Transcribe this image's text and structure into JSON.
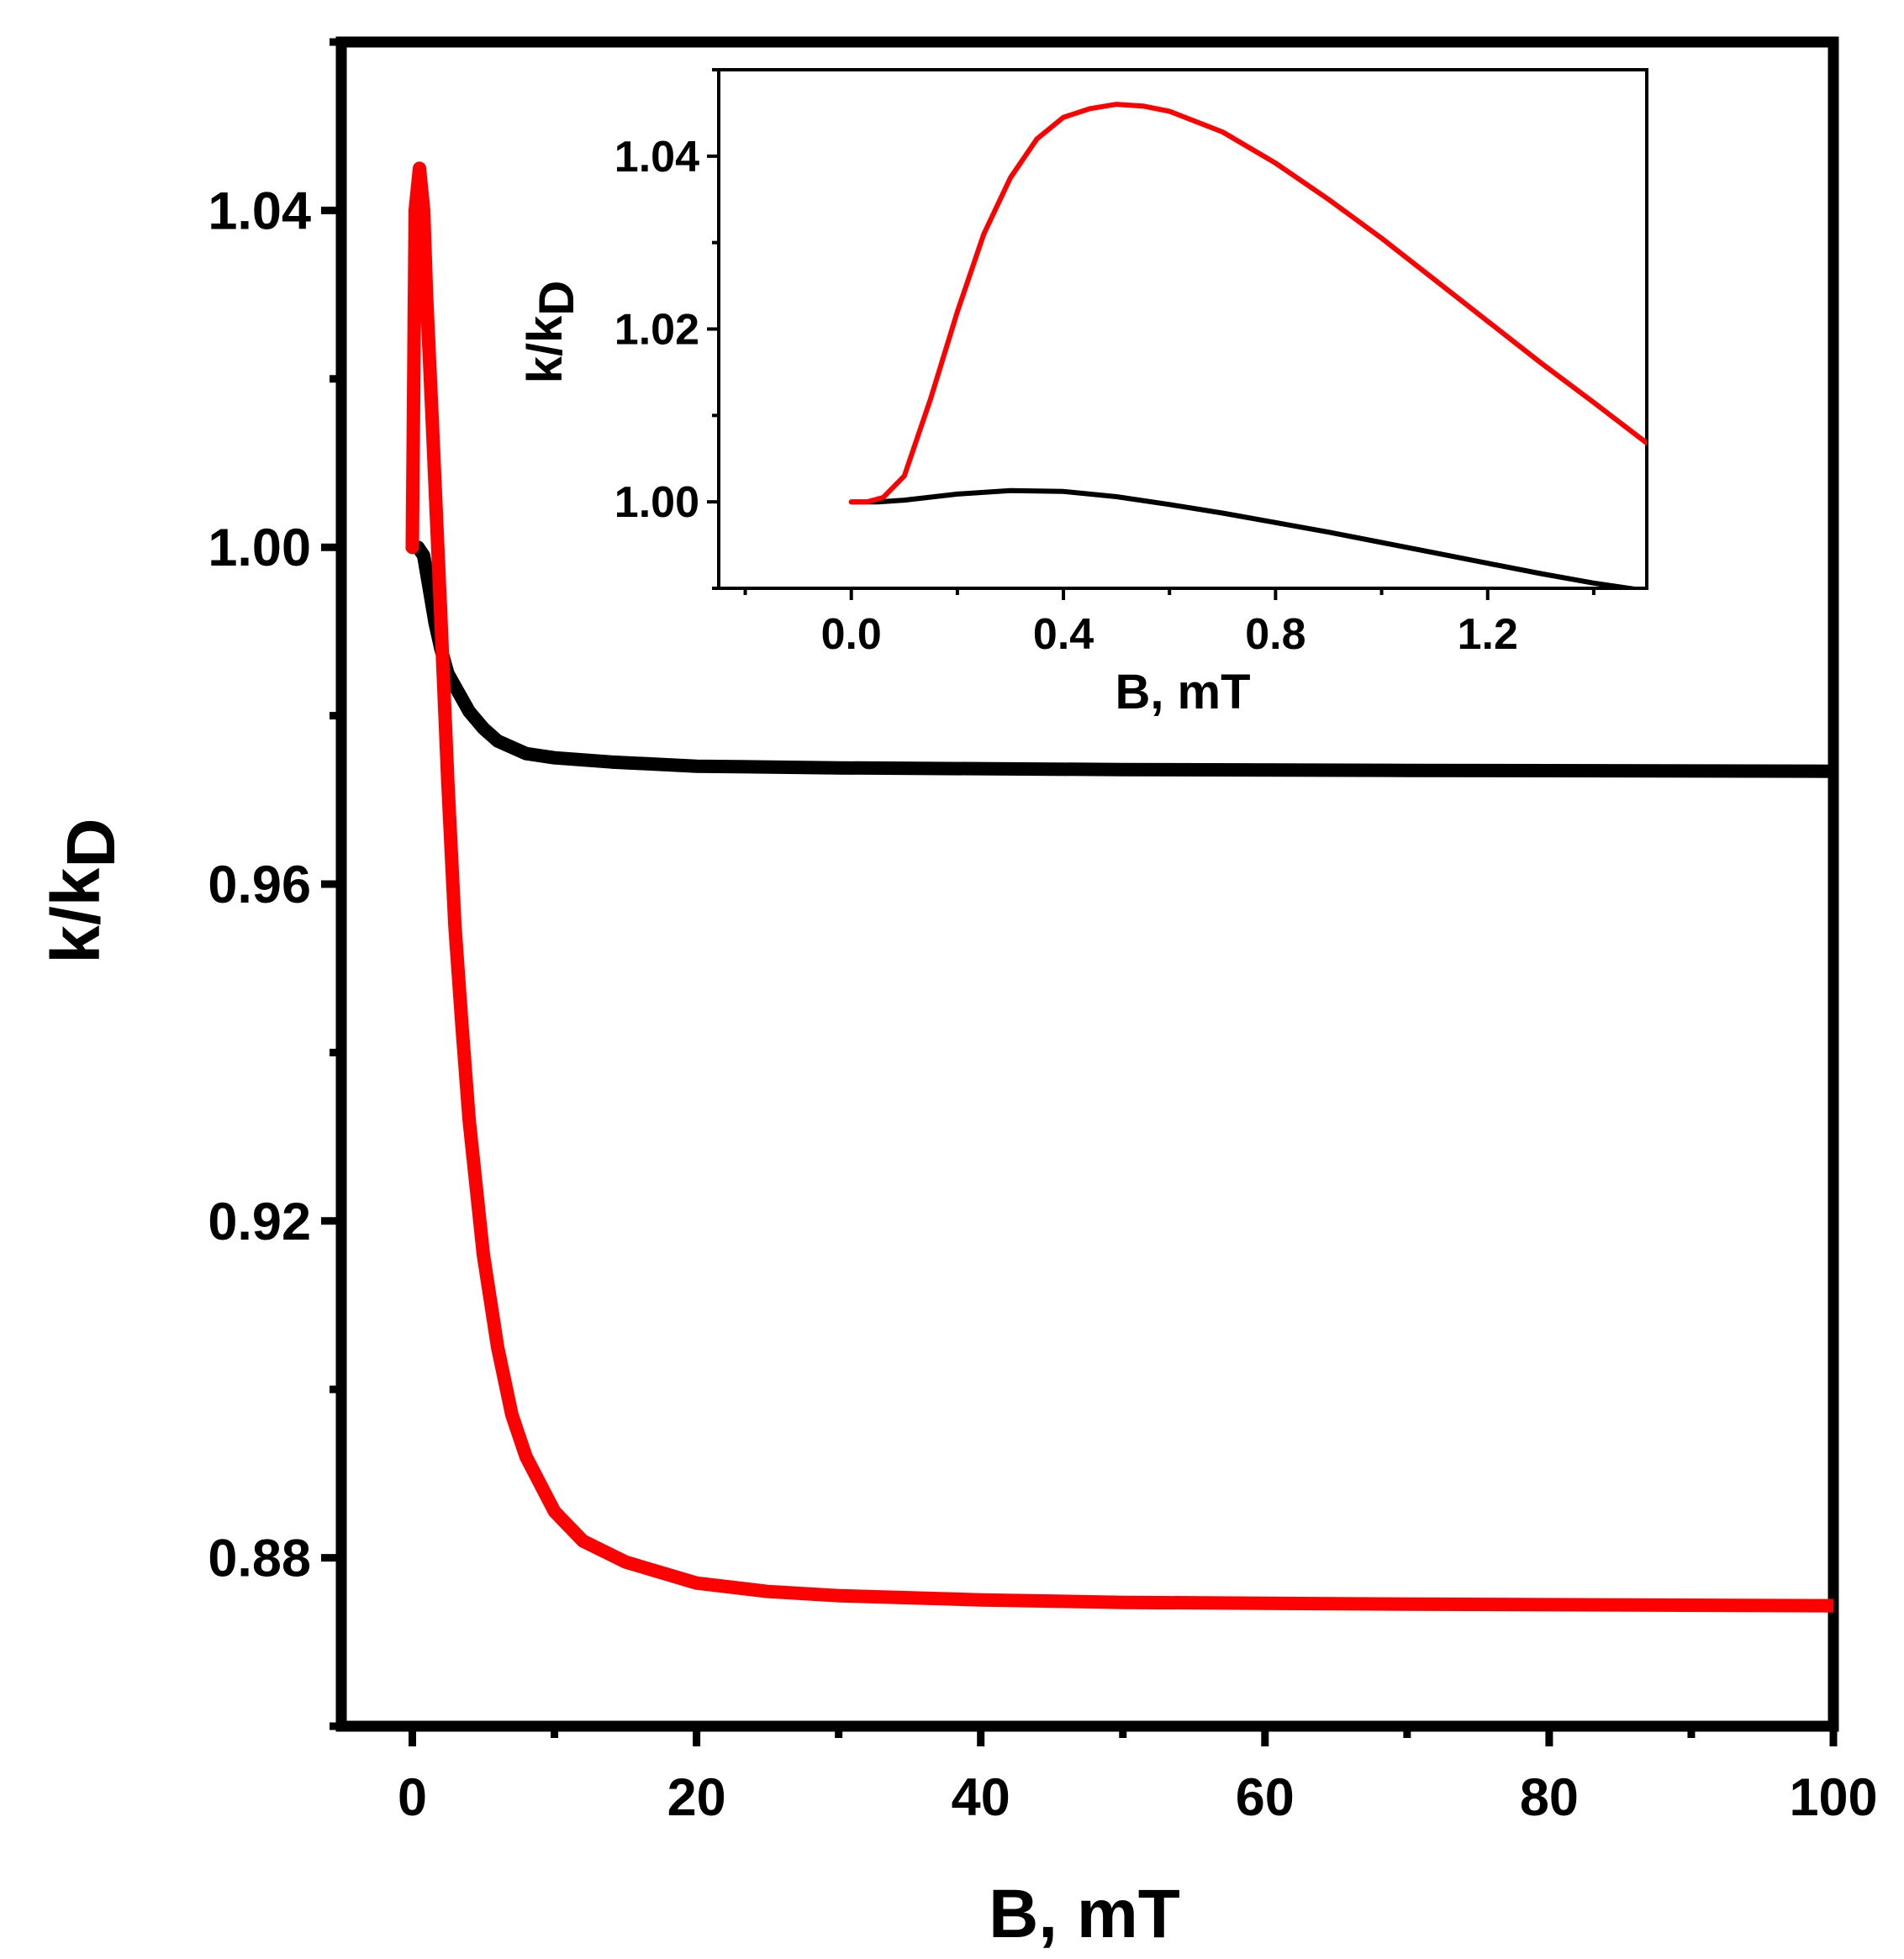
{
  "colors": {
    "series_1": "#000000",
    "series_2": "#ff0000",
    "axes": "#000000"
  },
  "chart_data": [
    {
      "type": "line",
      "panel": "main",
      "title": "",
      "xlabel": "B, mT",
      "ylabel": "k/kD",
      "ylabel_main": "k/k",
      "ylabel_sub": "D",
      "xlim": [
        -5,
        100
      ],
      "ylim": [
        0.86,
        1.06
      ],
      "xticks": [
        0,
        20,
        40,
        60,
        80,
        100
      ],
      "xtick_labels": [
        "0",
        "20",
        "40",
        "60",
        "80",
        "100"
      ],
      "xminor": [
        10,
        30,
        50,
        70,
        90
      ],
      "yticks": [
        0.88,
        0.92,
        0.96,
        1.0,
        1.04
      ],
      "ytick_labels": [
        "0.88",
        "0.92",
        "0.96",
        "1.00",
        "1.04"
      ],
      "yminor": [
        0.86,
        0.9,
        0.94,
        0.98,
        1.02,
        1.06
      ],
      "grid": false,
      "legend": "none",
      "series": [
        {
          "color": "#000000",
          "x": [
            0,
            0.4,
            0.8,
            1.2,
            1.6,
            2,
            2.5,
            3,
            3.5,
            4,
            5,
            6,
            8,
            10,
            14,
            20,
            30,
            50,
            70,
            100
          ],
          "y": [
            1.0,
            1.0,
            0.999,
            0.995,
            0.991,
            0.988,
            0.985,
            0.9835,
            0.982,
            0.9805,
            0.9785,
            0.977,
            0.9755,
            0.975,
            0.9745,
            0.974,
            0.9738,
            0.9736,
            0.9735,
            0.9734
          ]
        },
        {
          "color": "#ff0000",
          "x": [
            0,
            0.2,
            0.5,
            0.8,
            1.0,
            1.4,
            2,
            2.5,
            3,
            3.5,
            4,
            5,
            6,
            7,
            8,
            10,
            12,
            15,
            20,
            25,
            30,
            40,
            50,
            70,
            100
          ],
          "y": [
            1.0,
            1.04,
            1.045,
            1.04,
            1.03,
            1.015,
            0.992,
            0.972,
            0.955,
            0.943,
            0.932,
            0.916,
            0.905,
            0.897,
            0.892,
            0.8855,
            0.882,
            0.8795,
            0.877,
            0.876,
            0.8755,
            0.875,
            0.8747,
            0.8745,
            0.8743
          ]
        }
      ]
    },
    {
      "type": "line",
      "panel": "inset",
      "title": "",
      "xlabel": "B, mT",
      "ylabel": "k/kD",
      "ylabel_main": "k/k",
      "ylabel_sub": "D",
      "xlim": [
        -0.25,
        1.5
      ],
      "ylim": [
        0.99,
        1.05
      ],
      "xticks": [
        0.0,
        0.4,
        0.8,
        1.2
      ],
      "xtick_labels": [
        "0.0",
        "0.4",
        "0.8",
        "1.2"
      ],
      "xminor": [
        -0.2,
        0.2,
        0.6,
        1.0,
        1.4
      ],
      "yticks": [
        1.0,
        1.02,
        1.04
      ],
      "ytick_labels": [
        "1.00",
        "1.02",
        "1.04"
      ],
      "yminor": [
        0.99,
        1.01,
        1.03,
        1.05
      ],
      "grid": false,
      "legend": "none",
      "series": [
        {
          "color": "#000000",
          "x": [
            0,
            0.05,
            0.1,
            0.2,
            0.3,
            0.4,
            0.5,
            0.6,
            0.7,
            0.8,
            0.9,
            1.0,
            1.1,
            1.2,
            1.3,
            1.4,
            1.5
          ],
          "y": [
            1.0,
            1.0,
            1.0002,
            1.0009,
            1.0013,
            1.0012,
            1.0006,
            0.9997,
            0.9987,
            0.9976,
            0.9965,
            0.9953,
            0.9941,
            0.9929,
            0.9917,
            0.9906,
            0.9897
          ]
        },
        {
          "color": "#ff0000",
          "x": [
            0,
            0.03,
            0.06,
            0.1,
            0.15,
            0.2,
            0.25,
            0.3,
            0.35,
            0.4,
            0.45,
            0.5,
            0.55,
            0.6,
            0.7,
            0.8,
            0.9,
            1.0,
            1.1,
            1.2,
            1.3,
            1.4,
            1.5
          ],
          "y": [
            1.0,
            1.0,
            1.0005,
            1.003,
            1.012,
            1.022,
            1.031,
            1.0375,
            1.042,
            1.0445,
            1.0455,
            1.046,
            1.0458,
            1.0452,
            1.0428,
            1.0392,
            1.035,
            1.0305,
            1.0257,
            1.0209,
            1.0161,
            1.0115,
            1.0068
          ]
        }
      ]
    }
  ]
}
